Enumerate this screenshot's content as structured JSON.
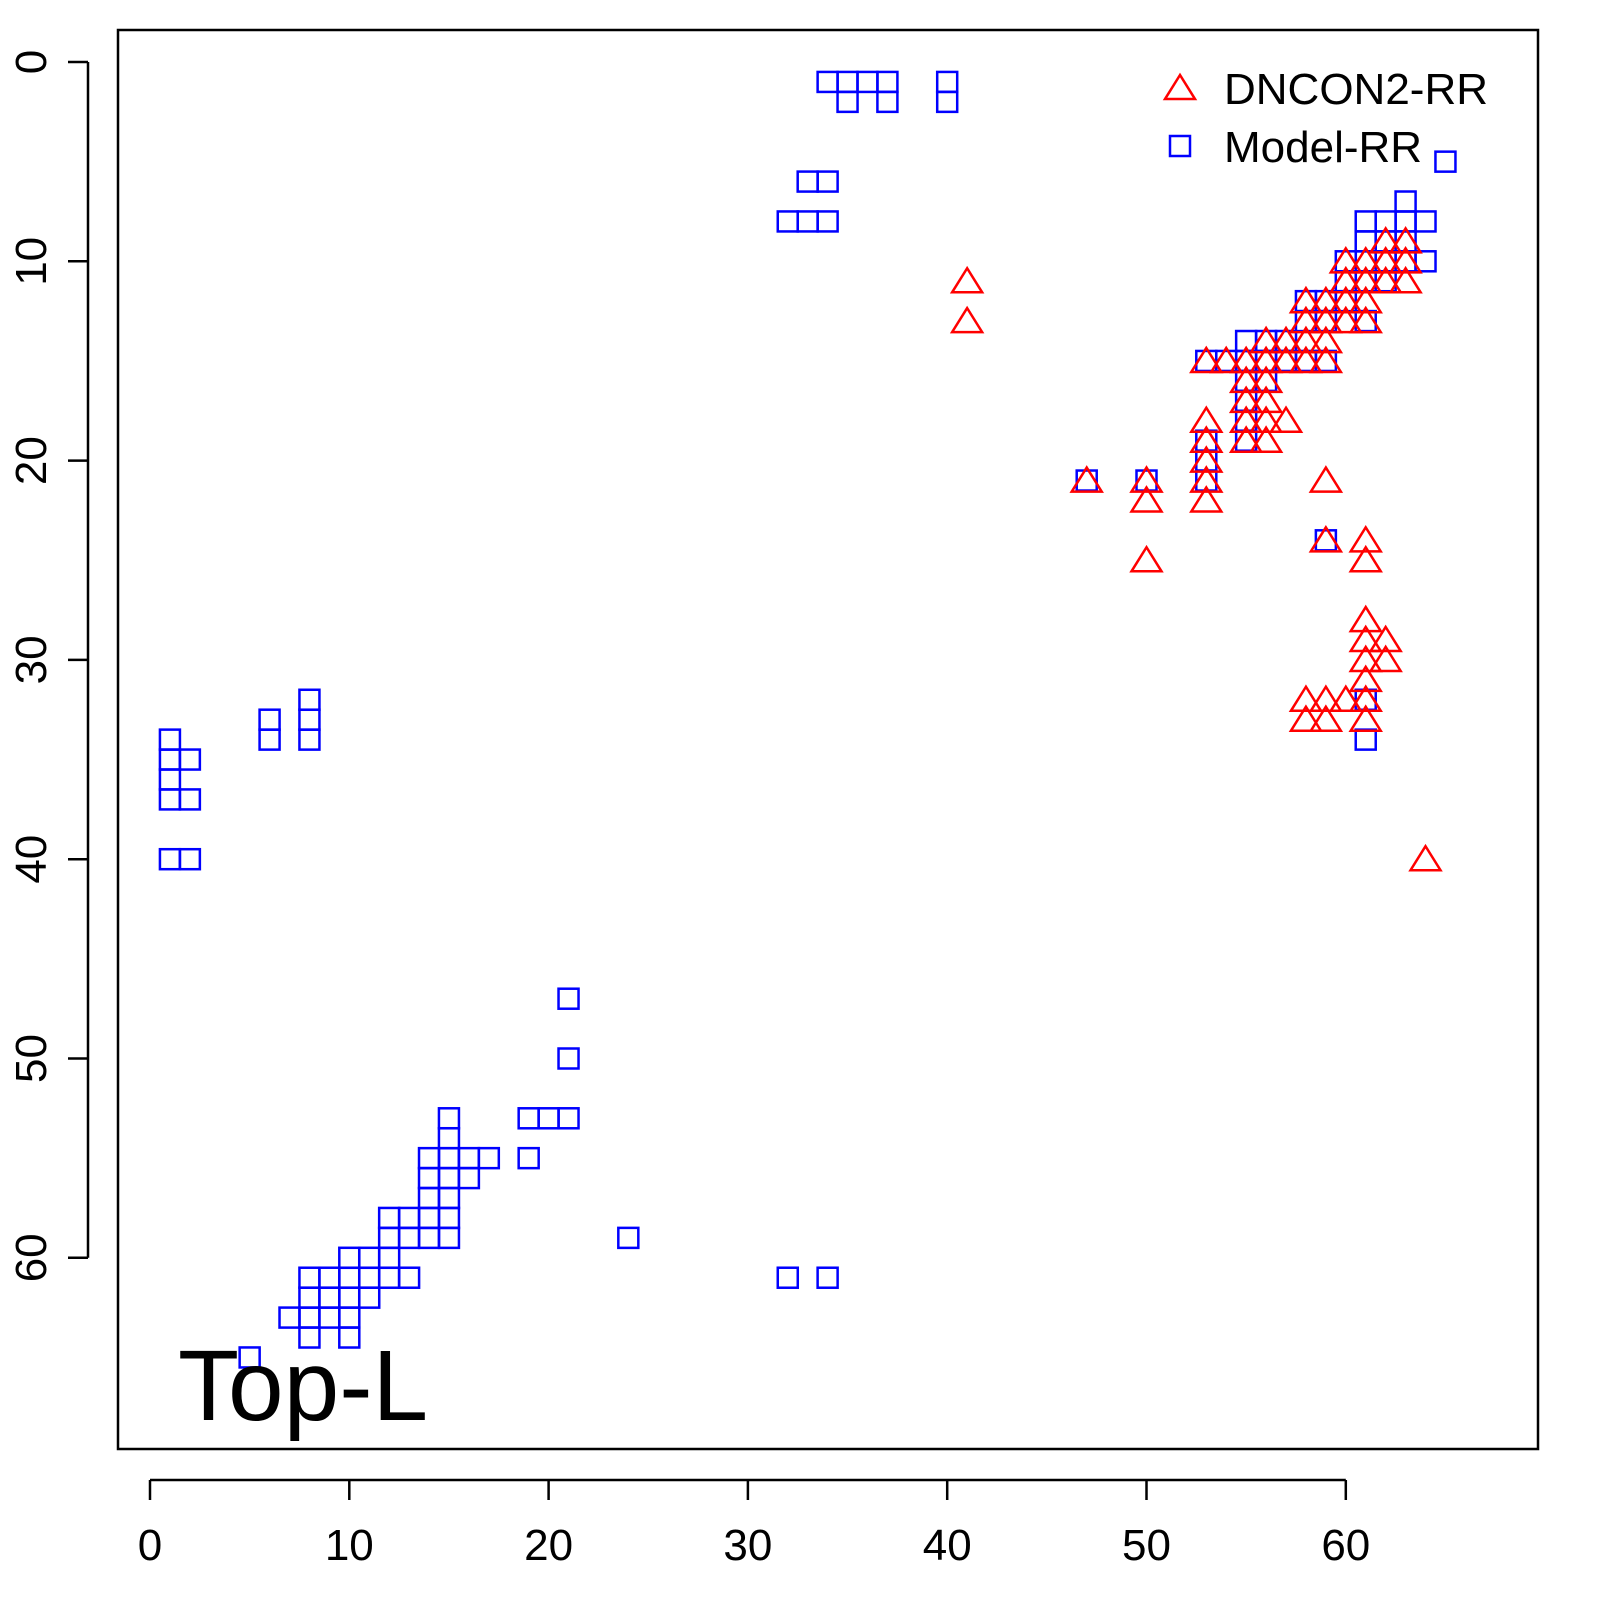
{
  "chart_data": {
    "type": "scatter",
    "title": "",
    "annotation": "Top-L",
    "xlabel": "",
    "ylabel": "",
    "xlim": [
      -1.6,
      69.6
    ],
    "ylim": [
      69.6,
      -1.6
    ],
    "y_inverted": true,
    "xticks": [
      0,
      10,
      20,
      30,
      40,
      50,
      60
    ],
    "yticks": [
      0,
      10,
      20,
      30,
      40,
      50,
      60
    ],
    "grid": false,
    "legend_position": "top-right",
    "series": [
      {
        "name": "DNCON2-RR",
        "marker": "triangle",
        "color": "#ff0000",
        "points": [
          [
            41,
            11
          ],
          [
            41,
            13
          ],
          [
            63,
            9
          ],
          [
            62,
            9
          ],
          [
            63,
            10
          ],
          [
            62,
            10
          ],
          [
            61,
            10
          ],
          [
            60,
            10
          ],
          [
            61,
            11
          ],
          [
            62,
            11
          ],
          [
            63,
            11
          ],
          [
            60,
            11
          ],
          [
            59,
            12
          ],
          [
            58,
            12
          ],
          [
            60,
            12
          ],
          [
            61,
            12
          ],
          [
            58,
            13
          ],
          [
            59,
            13
          ],
          [
            60,
            13
          ],
          [
            61,
            13
          ],
          [
            56,
            14
          ],
          [
            57,
            14
          ],
          [
            58,
            14
          ],
          [
            59,
            14
          ],
          [
            53,
            15
          ],
          [
            54,
            15
          ],
          [
            55,
            15
          ],
          [
            56,
            15
          ],
          [
            57,
            15
          ],
          [
            58,
            15
          ],
          [
            59,
            15
          ],
          [
            55,
            16
          ],
          [
            56,
            16
          ],
          [
            55,
            17
          ],
          [
            56,
            17
          ],
          [
            55,
            18
          ],
          [
            56,
            18
          ],
          [
            57,
            18
          ],
          [
            53,
            18
          ],
          [
            53,
            19
          ],
          [
            55,
            19
          ],
          [
            56,
            19
          ],
          [
            53,
            20
          ],
          [
            53,
            21
          ],
          [
            53,
            22
          ],
          [
            47,
            21
          ],
          [
            50,
            21
          ],
          [
            50,
            22
          ],
          [
            50,
            25
          ],
          [
            59,
            21
          ],
          [
            59,
            24
          ],
          [
            61,
            24
          ],
          [
            61,
            25
          ],
          [
            61,
            28
          ],
          [
            61,
            29
          ],
          [
            62,
            29
          ],
          [
            61,
            30
          ],
          [
            62,
            30
          ],
          [
            61,
            31
          ],
          [
            58,
            32
          ],
          [
            59,
            32
          ],
          [
            60,
            32
          ],
          [
            61,
            32
          ],
          [
            58,
            33
          ],
          [
            59,
            33
          ],
          [
            61,
            33
          ],
          [
            64,
            40
          ]
        ]
      },
      {
        "name": "Model-RR",
        "marker": "square",
        "color": "#0000ff",
        "points": [
          [
            34,
            1
          ],
          [
            35,
            1
          ],
          [
            36,
            1
          ],
          [
            37,
            1
          ],
          [
            35,
            2
          ],
          [
            37,
            2
          ],
          [
            40,
            1
          ],
          [
            40,
            2
          ],
          [
            33,
            6
          ],
          [
            34,
            6
          ],
          [
            32,
            8
          ],
          [
            33,
            8
          ],
          [
            34,
            8
          ],
          [
            65,
            5
          ],
          [
            63,
            7
          ],
          [
            61,
            8
          ],
          [
            62,
            8
          ],
          [
            63,
            8
          ],
          [
            64,
            8
          ],
          [
            61,
            9
          ],
          [
            62,
            9
          ],
          [
            63,
            9
          ],
          [
            60,
            10
          ],
          [
            61,
            10
          ],
          [
            62,
            10
          ],
          [
            63,
            10
          ],
          [
            64,
            10
          ],
          [
            60,
            11
          ],
          [
            61,
            11
          ],
          [
            62,
            11
          ],
          [
            58,
            12
          ],
          [
            59,
            12
          ],
          [
            60,
            12
          ],
          [
            58,
            13
          ],
          [
            59,
            13
          ],
          [
            61,
            13
          ],
          [
            55,
            14
          ],
          [
            56,
            14
          ],
          [
            57,
            14
          ],
          [
            53,
            15
          ],
          [
            54,
            15
          ],
          [
            55,
            15
          ],
          [
            56,
            15
          ],
          [
            57,
            15
          ],
          [
            58,
            15
          ],
          [
            59,
            15
          ],
          [
            55,
            16
          ],
          [
            56,
            16
          ],
          [
            55,
            17
          ],
          [
            55,
            18
          ],
          [
            55,
            19
          ],
          [
            53,
            19
          ],
          [
            53,
            20
          ],
          [
            53,
            21
          ],
          [
            47,
            21
          ],
          [
            50,
            21
          ],
          [
            59,
            24
          ],
          [
            61,
            32
          ],
          [
            61,
            34
          ],
          [
            1,
            34
          ],
          [
            1,
            35
          ],
          [
            2,
            35
          ],
          [
            1,
            36
          ],
          [
            1,
            37
          ],
          [
            2,
            37
          ],
          [
            1,
            40
          ],
          [
            2,
            40
          ],
          [
            6,
            33
          ],
          [
            6,
            34
          ],
          [
            8,
            32
          ],
          [
            8,
            33
          ],
          [
            8,
            34
          ],
          [
            21,
            47
          ],
          [
            21,
            50
          ],
          [
            19,
            53
          ],
          [
            20,
            53
          ],
          [
            21,
            53
          ],
          [
            19,
            55
          ],
          [
            15,
            53
          ],
          [
            15,
            54
          ],
          [
            14,
            55
          ],
          [
            15,
            55
          ],
          [
            16,
            55
          ],
          [
            17,
            55
          ],
          [
            14,
            56
          ],
          [
            15,
            56
          ],
          [
            16,
            56
          ],
          [
            14,
            57
          ],
          [
            15,
            57
          ],
          [
            14,
            58
          ],
          [
            15,
            58
          ],
          [
            12,
            58
          ],
          [
            13,
            58
          ],
          [
            12,
            59
          ],
          [
            13,
            59
          ],
          [
            14,
            59
          ],
          [
            15,
            59
          ],
          [
            10,
            60
          ],
          [
            11,
            60
          ],
          [
            12,
            60
          ],
          [
            8,
            61
          ],
          [
            9,
            61
          ],
          [
            10,
            61
          ],
          [
            11,
            61
          ],
          [
            12,
            61
          ],
          [
            13,
            61
          ],
          [
            8,
            62
          ],
          [
            9,
            62
          ],
          [
            10,
            62
          ],
          [
            11,
            62
          ],
          [
            7,
            63
          ],
          [
            8,
            63
          ],
          [
            9,
            63
          ],
          [
            10,
            63
          ],
          [
            8,
            64
          ],
          [
            10,
            64
          ],
          [
            5,
            65
          ],
          [
            24,
            59
          ],
          [
            32,
            61
          ],
          [
            34,
            61
          ]
        ]
      }
    ]
  }
}
